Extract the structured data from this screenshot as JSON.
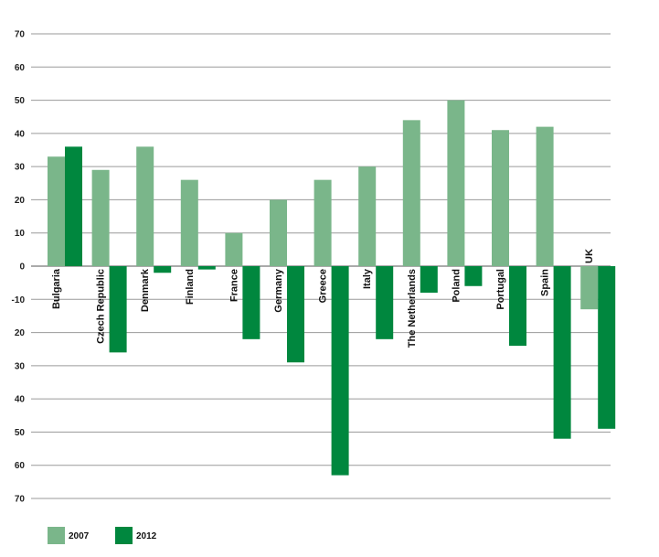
{
  "chart_data": {
    "type": "bar",
    "title": "",
    "xlabel": "",
    "ylabel": "",
    "ylim": [
      -70,
      70
    ],
    "yticks": [
      70,
      60,
      50,
      40,
      30,
      20,
      10,
      0,
      -10,
      -20,
      -30,
      -40,
      -50,
      -60,
      -70
    ],
    "ytick_labels": [
      "70",
      "60",
      "50",
      "40",
      "30",
      "20",
      "10",
      "0",
      "-10",
      "20",
      "30",
      "40",
      "50",
      "60",
      "70"
    ],
    "grid": true,
    "legend_position": "bottom-left",
    "categories": [
      "Bulgaria",
      "Czech Republic",
      "Denmark",
      "Finland",
      "France",
      "Germany",
      "Greece",
      "Italy",
      "The Netherlands",
      "Poland",
      "Portugal",
      "Spain",
      "UK"
    ],
    "series": [
      {
        "name": "2007",
        "color": "#7ab68a",
        "values": [
          33,
          29,
          36,
          26,
          10,
          20,
          26,
          30,
          44,
          50,
          41,
          42,
          -13
        ]
      },
      {
        "name": "2012",
        "color": "#00873e",
        "values": [
          36,
          -26,
          -2,
          -1,
          -22,
          -29,
          -63,
          -22,
          -8,
          -6,
          -24,
          -52,
          -49
        ]
      }
    ]
  }
}
